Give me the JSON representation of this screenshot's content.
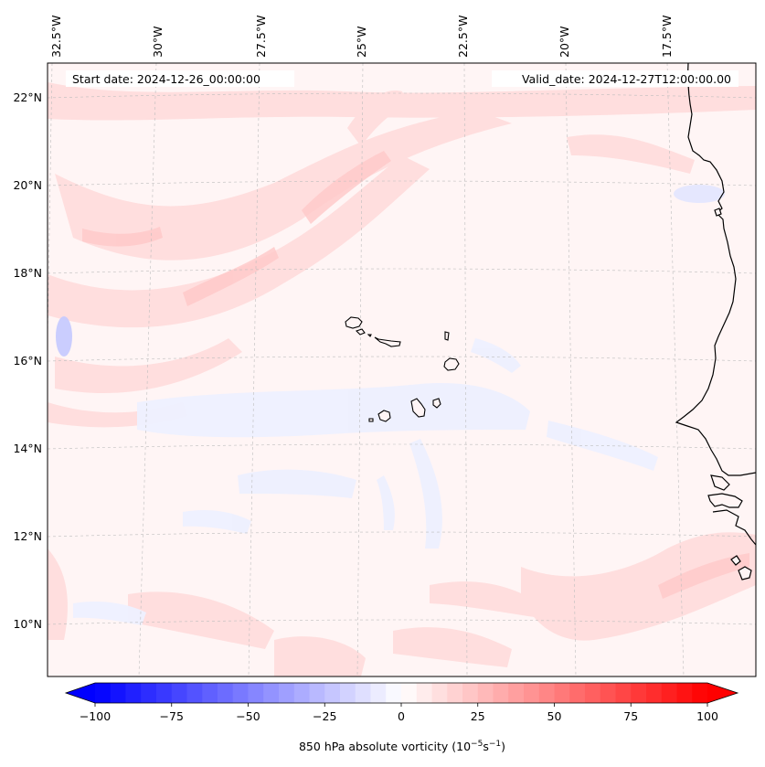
{
  "map": {
    "variable_label": "850 hPa absolute vorticity (10",
    "variable_unit_exp1": "−5",
    "variable_unit_mid": "s",
    "variable_unit_exp2": "−1",
    "variable_unit_close": ")",
    "start_date": "Start date: 2024-12-26_00:00:00",
    "valid_date": "Valid_date: 2024-12-27T12:00:00.00",
    "lon_labels": [
      "32.5°W",
      "30°W",
      "27.5°W",
      "25°W",
      "22.5°W",
      "20°W",
      "17.5°W"
    ],
    "lat_labels": [
      "22°N",
      "20°N",
      "18°N",
      "16°N",
      "14°N",
      "12°N",
      "10°N"
    ],
    "colors": {
      "background": "#fff5f5",
      "positive_band": "#ffdede",
      "negative_band": "#eef0ff",
      "coast": "#000000",
      "grid": "#bbbbbb"
    }
  },
  "colorbar": {
    "min": -100,
    "max": 100,
    "ticks": [
      "−100",
      "−75",
      "−50",
      "−25",
      "0",
      "25",
      "50",
      "75",
      "100"
    ],
    "cmap": "bwr",
    "extend": "both"
  }
}
